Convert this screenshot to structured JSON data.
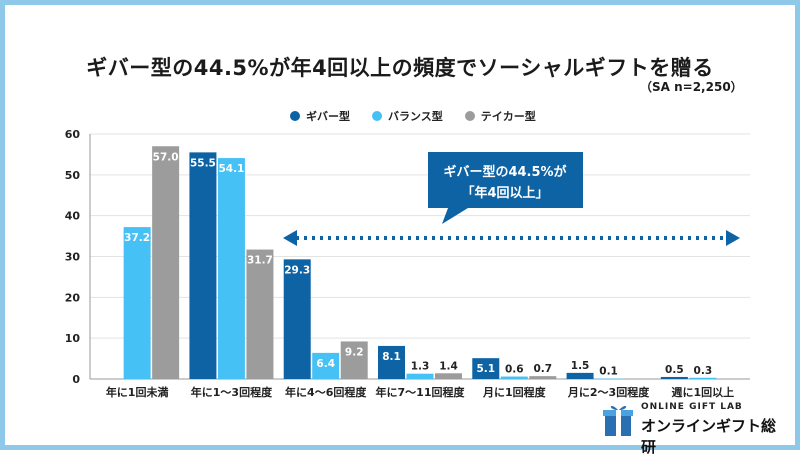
{
  "title": "ギバー型の44.5%が年4回以上の頻度でソーシャルギフトを贈る",
  "subtitle": "（SA n=2,250）",
  "legend": [
    {
      "label": "ギバー型",
      "color": "#0e63a5"
    },
    {
      "label": "バランス型",
      "color": "#45c1f5"
    },
    {
      "label": "テイカー型",
      "color": "#9c9c9c"
    }
  ],
  "callout": {
    "line1": "ギバー型の44.5%が",
    "line2": "「年4回以上」",
    "color": "#0e63a5"
  },
  "logo": {
    "top_text": "ONLINE GIFT LAB",
    "main_text": "オンラインギフト総研"
  },
  "chart_data": {
    "type": "bar",
    "categories": [
      "年に1回未満",
      "年に1～3回程度",
      "年に4～6回程度",
      "年に7～11回程度",
      "月に1回程度",
      "月に2～3回程度",
      "週に1回以上"
    ],
    "series": [
      {
        "name": "ギバー型",
        "values": [
          null,
          55.5,
          29.3,
          8.1,
          5.1,
          1.5,
          0.5
        ]
      },
      {
        "name": "バランス型",
        "values": [
          37.2,
          54.1,
          6.4,
          1.3,
          0.6,
          0.1,
          0.3
        ]
      },
      {
        "name": "テイカー型",
        "values": [
          57.0,
          31.7,
          9.2,
          1.4,
          0.7,
          null,
          null
        ]
      }
    ],
    "ylim": [
      0,
      60
    ],
    "yticks": [
      0,
      10,
      20,
      30,
      40,
      50,
      60
    ],
    "grid": true,
    "legend_position": "top-center",
    "colors": [
      "#0e63a5",
      "#45c1f5",
      "#9c9c9c"
    ]
  }
}
